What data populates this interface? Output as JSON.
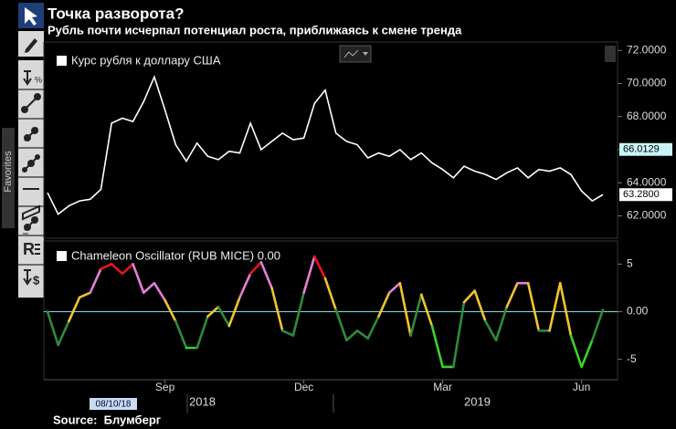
{
  "header": {
    "title": "Точка разворота?",
    "subtitle": "Рубль почти исчерпал потенциал роста, приближаясь к смене тренда"
  },
  "toolbar": {
    "favorites": "Favorites"
  },
  "chart_data": [
    {
      "type": "line",
      "legend": "Курс рубля к доллару США",
      "color": "#ffffff",
      "values": [
        63.4,
        62.1,
        62.6,
        62.9,
        63.0,
        63.6,
        67.6,
        67.9,
        67.7,
        68.9,
        70.4,
        68.4,
        66.3,
        65.3,
        66.4,
        65.6,
        65.4,
        65.9,
        65.8,
        67.6,
        66.0,
        66.5,
        67.0,
        66.6,
        66.7,
        68.8,
        69.6,
        67.0,
        66.5,
        66.3,
        65.5,
        65.8,
        65.6,
        66.0,
        65.4,
        65.8,
        65.2,
        64.8,
        64.3,
        65.0,
        64.7,
        64.5,
        64.2,
        64.6,
        64.9,
        64.3,
        64.8,
        64.7,
        64.9,
        64.5,
        63.5,
        62.9,
        63.28
      ],
      "ylim": [
        60.7,
        72.4
      ],
      "yticks": [
        {
          "value": 62,
          "label": "62.0000"
        },
        {
          "value": 64,
          "label": "64.0000"
        },
        {
          "value": 66,
          "label": "66.0000"
        },
        {
          "value": 68,
          "label": "68.0000"
        },
        {
          "value": 70,
          "label": "70.0000"
        },
        {
          "value": 72,
          "label": "72.0000"
        }
      ],
      "price_tags": [
        {
          "value": 66.0129,
          "label": "66.0129",
          "background": "#c9f3f6"
        },
        {
          "value": 63.28,
          "label": "63.2800",
          "background": "#ffffff"
        }
      ]
    },
    {
      "type": "oscillator",
      "legend": "Chameleon Oscillator (RUB MICE) 0.00",
      "values": [
        0,
        -3.5,
        -1,
        1.5,
        2,
        4.5,
        5,
        4,
        5,
        2,
        3,
        1.2,
        -1,
        -3.8,
        -3.8,
        -0.5,
        0.5,
        -1.5,
        1.5,
        4,
        5.2,
        2.5,
        -2,
        -2.5,
        2,
        5.8,
        3.5,
        0.2,
        -3,
        -2,
        -2.8,
        -0.5,
        2,
        3,
        -2.5,
        1.8,
        -1.5,
        -5.8,
        -5.8,
        1,
        2.2,
        -1,
        -3,
        0.5,
        3,
        3,
        -2,
        -2,
        3,
        -2.5,
        -5.8,
        -3,
        0.2
      ],
      "color_bands": [
        {
          "min": 4,
          "color": "#e5141f"
        },
        {
          "min": 2,
          "color": "#e47fd6"
        },
        {
          "min": 0,
          "color": "#f3c331"
        },
        {
          "min": -3,
          "color": "#2e8b3b"
        }
      ],
      "low_color": "#3cd22c",
      "zero_line_color": "#7fe3e8",
      "categories": [
        null,
        null,
        null,
        null,
        null,
        null,
        null,
        null,
        null,
        null,
        null,
        "Sep",
        null,
        null,
        null,
        null,
        null,
        null,
        null,
        null,
        null,
        null,
        null,
        null,
        "Dec",
        null,
        null,
        null,
        null,
        null,
        null,
        null,
        null,
        null,
        null,
        null,
        null,
        "Mar",
        null,
        null,
        null,
        null,
        null,
        null,
        null,
        null,
        null,
        null,
        null,
        null,
        "Jun",
        null,
        null
      ],
      "ylim": [
        -7.05,
        7.24
      ],
      "yticks": [
        -5,
        {
          "value": 0,
          "label": "0.00"
        },
        5
      ]
    }
  ],
  "x_axis": {
    "years": [
      "2018",
      "2019"
    ],
    "date_badge": "08/10/18"
  },
  "source": "Source:  Блумберг"
}
